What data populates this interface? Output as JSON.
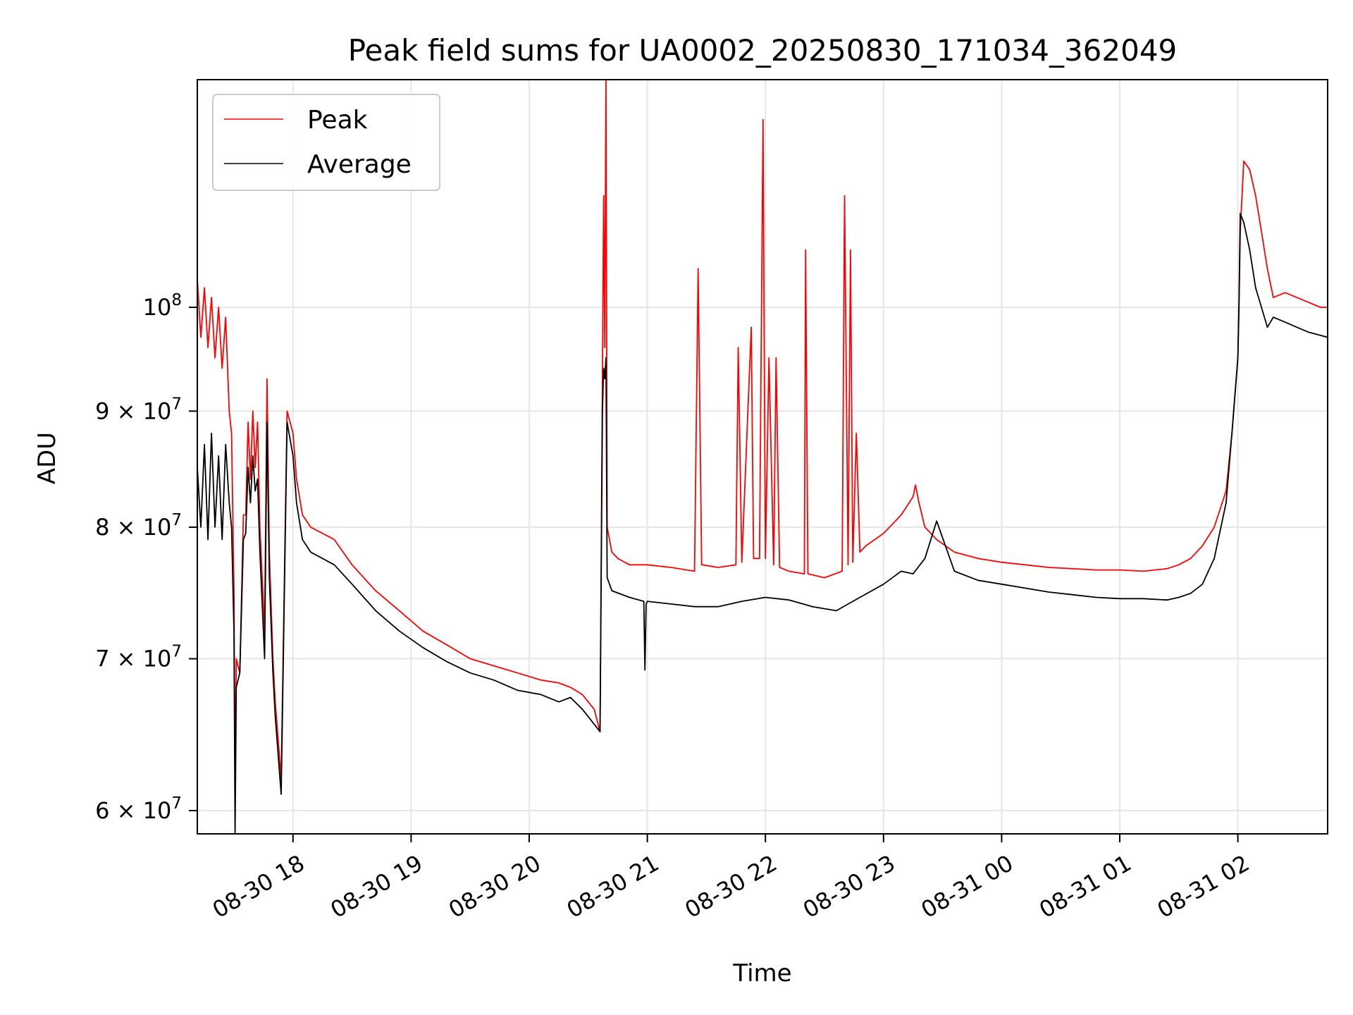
{
  "chart_data": {
    "type": "line",
    "title": "Peak field sums for UA0002_20250830_171034_362049",
    "xlabel": "Time",
    "ylabel": "ADU",
    "yscale": "log",
    "grid": true,
    "legend_position": "upper-left",
    "colors": {
      "peak": "#ff0000",
      "average": "#000000",
      "grid": "#e6e6e6"
    },
    "xlim_hours": [
      17.19,
      26.76
    ],
    "ylim": [
      58600000,
      126000000
    ],
    "x_ticks": [
      {
        "hours": 18,
        "label": "08-30 18"
      },
      {
        "hours": 19,
        "label": "08-30 19"
      },
      {
        "hours": 20,
        "label": "08-30 20"
      },
      {
        "hours": 21,
        "label": "08-30 21"
      },
      {
        "hours": 22,
        "label": "08-30 22"
      },
      {
        "hours": 23,
        "label": "08-30 23"
      },
      {
        "hours": 24,
        "label": "08-31 00"
      },
      {
        "hours": 25,
        "label": "08-31 01"
      },
      {
        "hours": 26,
        "label": "08-31 02"
      }
    ],
    "y_ticks": [
      {
        "value": 60000000,
        "mantissa": "6",
        "label": "6 × 10^7"
      },
      {
        "value": 70000000,
        "mantissa": "7",
        "label": "7 × 10^7"
      },
      {
        "value": 80000000,
        "mantissa": "8",
        "label": "8 × 10^7"
      },
      {
        "value": 90000000,
        "mantissa": "9",
        "label": "9 × 10^7"
      },
      {
        "value": 100000000,
        "mantissa": "",
        "label": "10^8"
      }
    ],
    "series": [
      {
        "name": "Peak",
        "color": "#ff0000",
        "x_hours": [
          17.19,
          17.22,
          17.25,
          17.28,
          17.31,
          17.34,
          17.37,
          17.4,
          17.43,
          17.46,
          17.48,
          17.5,
          17.51,
          17.52,
          17.55,
          17.58,
          17.6,
          17.62,
          17.64,
          17.66,
          17.68,
          17.7,
          17.72,
          17.76,
          17.78,
          17.8,
          17.83,
          17.85,
          17.9,
          17.95,
          18.0,
          18.03,
          18.08,
          18.15,
          18.25,
          18.35,
          18.5,
          18.7,
          18.9,
          19.1,
          19.3,
          19.5,
          19.7,
          19.9,
          20.1,
          20.25,
          20.35,
          20.45,
          20.55,
          20.6,
          20.62,
          20.63,
          20.64,
          20.65,
          20.66,
          20.68,
          20.7,
          20.75,
          20.85,
          21.0,
          21.2,
          21.4,
          21.43,
          21.46,
          21.6,
          21.75,
          21.77,
          21.8,
          21.88,
          21.9,
          21.95,
          21.98,
          21.99,
          22.0,
          22.03,
          22.07,
          22.09,
          22.12,
          22.2,
          22.33,
          22.34,
          22.36,
          22.5,
          22.65,
          22.67,
          22.7,
          22.72,
          22.74,
          22.77,
          22.8,
          22.85,
          23.0,
          23.15,
          23.25,
          23.27,
          23.3,
          23.35,
          23.45,
          23.6,
          23.8,
          24.0,
          24.2,
          24.4,
          24.6,
          24.8,
          25.0,
          25.2,
          25.4,
          25.5,
          25.6,
          25.7,
          25.8,
          25.9,
          25.95,
          26.0,
          26.01,
          26.02,
          26.05,
          26.1,
          26.15,
          26.2,
          26.25,
          26.3,
          26.4,
          26.5,
          26.6,
          26.7,
          26.76
        ],
        "values": [
          103000000,
          97000000,
          102000000,
          96000000,
          101000000,
          95000000,
          100000000,
          94000000,
          99000000,
          90000000,
          88000000,
          75000000,
          62000000,
          70000000,
          69000000,
          81000000,
          81000000,
          89000000,
          84000000,
          90000000,
          85000000,
          89000000,
          80000000,
          72000000,
          93000000,
          78000000,
          70000000,
          67000000,
          62000000,
          90000000,
          88000000,
          84000000,
          81000000,
          80000000,
          79500000,
          79000000,
          77000000,
          75000000,
          73500000,
          72000000,
          71000000,
          70000000,
          69500000,
          69000000,
          68500000,
          68300000,
          68000000,
          67500000,
          66500000,
          65000000,
          93000000,
          112000000,
          96000000,
          126000000,
          80000000,
          79000000,
          78000000,
          77500000,
          77000000,
          77000000,
          76800000,
          76500000,
          104000000,
          77000000,
          76800000,
          77000000,
          96000000,
          77200000,
          98000000,
          77500000,
          77500000,
          121000000,
          96000000,
          77500000,
          95000000,
          77000000,
          95000000,
          76800000,
          76500000,
          76300000,
          106000000,
          76300000,
          76000000,
          76500000,
          112000000,
          77000000,
          106000000,
          77200000,
          88000000,
          78000000,
          78500000,
          79500000,
          81000000,
          82500000,
          83500000,
          82000000,
          80000000,
          79000000,
          78000000,
          77500000,
          77200000,
          77000000,
          76800000,
          76700000,
          76600000,
          76600000,
          76500000,
          76700000,
          77000000,
          77500000,
          78500000,
          80000000,
          83000000,
          88000000,
          95000000,
          100000000,
          108000000,
          116000000,
          115000000,
          112000000,
          108000000,
          104000000,
          101000000,
          101500000,
          101000000,
          100500000,
          100000000,
          100000000
        ]
      },
      {
        "name": "Average",
        "color": "#000000",
        "x_hours": [
          17.19,
          17.22,
          17.25,
          17.28,
          17.31,
          17.34,
          17.37,
          17.4,
          17.43,
          17.46,
          17.48,
          17.5,
          17.51,
          17.52,
          17.55,
          17.58,
          17.6,
          17.62,
          17.64,
          17.66,
          17.68,
          17.7,
          17.72,
          17.76,
          17.78,
          17.8,
          17.83,
          17.85,
          17.9,
          17.95,
          18.0,
          18.03,
          18.08,
          18.15,
          18.25,
          18.35,
          18.5,
          18.7,
          18.9,
          19.1,
          19.3,
          19.5,
          19.7,
          19.9,
          20.1,
          20.25,
          20.35,
          20.45,
          20.55,
          20.6,
          20.62,
          20.63,
          20.64,
          20.65,
          20.66,
          20.7,
          20.85,
          20.97,
          20.98,
          20.99,
          21.0,
          21.2,
          21.4,
          21.6,
          21.8,
          22.0,
          22.2,
          22.4,
          22.6,
          22.8,
          23.0,
          23.15,
          23.25,
          23.35,
          23.45,
          23.6,
          23.8,
          24.0,
          24.2,
          24.4,
          24.6,
          24.8,
          25.0,
          25.2,
          25.4,
          25.5,
          25.6,
          25.7,
          25.8,
          25.9,
          25.95,
          26.0,
          26.01,
          26.02,
          26.05,
          26.1,
          26.15,
          26.2,
          26.25,
          26.3,
          26.4,
          26.5,
          26.6,
          26.7,
          26.76
        ],
        "values": [
          85000000,
          80000000,
          87000000,
          79000000,
          88000000,
          80000000,
          86000000,
          79000000,
          87000000,
          82000000,
          80000000,
          72000000,
          58600000,
          68000000,
          69000000,
          79000000,
          79500000,
          85000000,
          82000000,
          86000000,
          83000000,
          84000000,
          78000000,
          70000000,
          89000000,
          76000000,
          69000000,
          66000000,
          61000000,
          89000000,
          86000000,
          82000000,
          79000000,
          78000000,
          77500000,
          77000000,
          75500000,
          73500000,
          72000000,
          70800000,
          69800000,
          69000000,
          68500000,
          67800000,
          67500000,
          67000000,
          67300000,
          66500000,
          65500000,
          65000000,
          90000000,
          94000000,
          93000000,
          95000000,
          76000000,
          75000000,
          74500000,
          74200000,
          69200000,
          74000000,
          74200000,
          74000000,
          73800000,
          73800000,
          74200000,
          74500000,
          74300000,
          73800000,
          73500000,
          74500000,
          75500000,
          76500000,
          76300000,
          77500000,
          80500000,
          76500000,
          75800000,
          75500000,
          75200000,
          74900000,
          74700000,
          74500000,
          74400000,
          74400000,
          74300000,
          74500000,
          74800000,
          75500000,
          77500000,
          82000000,
          88000000,
          95000000,
          101000000,
          110000000,
          109000000,
          106000000,
          102000000,
          100000000,
          98000000,
          99000000,
          98500000,
          98000000,
          97500000,
          97200000,
          97000000
        ]
      }
    ]
  }
}
